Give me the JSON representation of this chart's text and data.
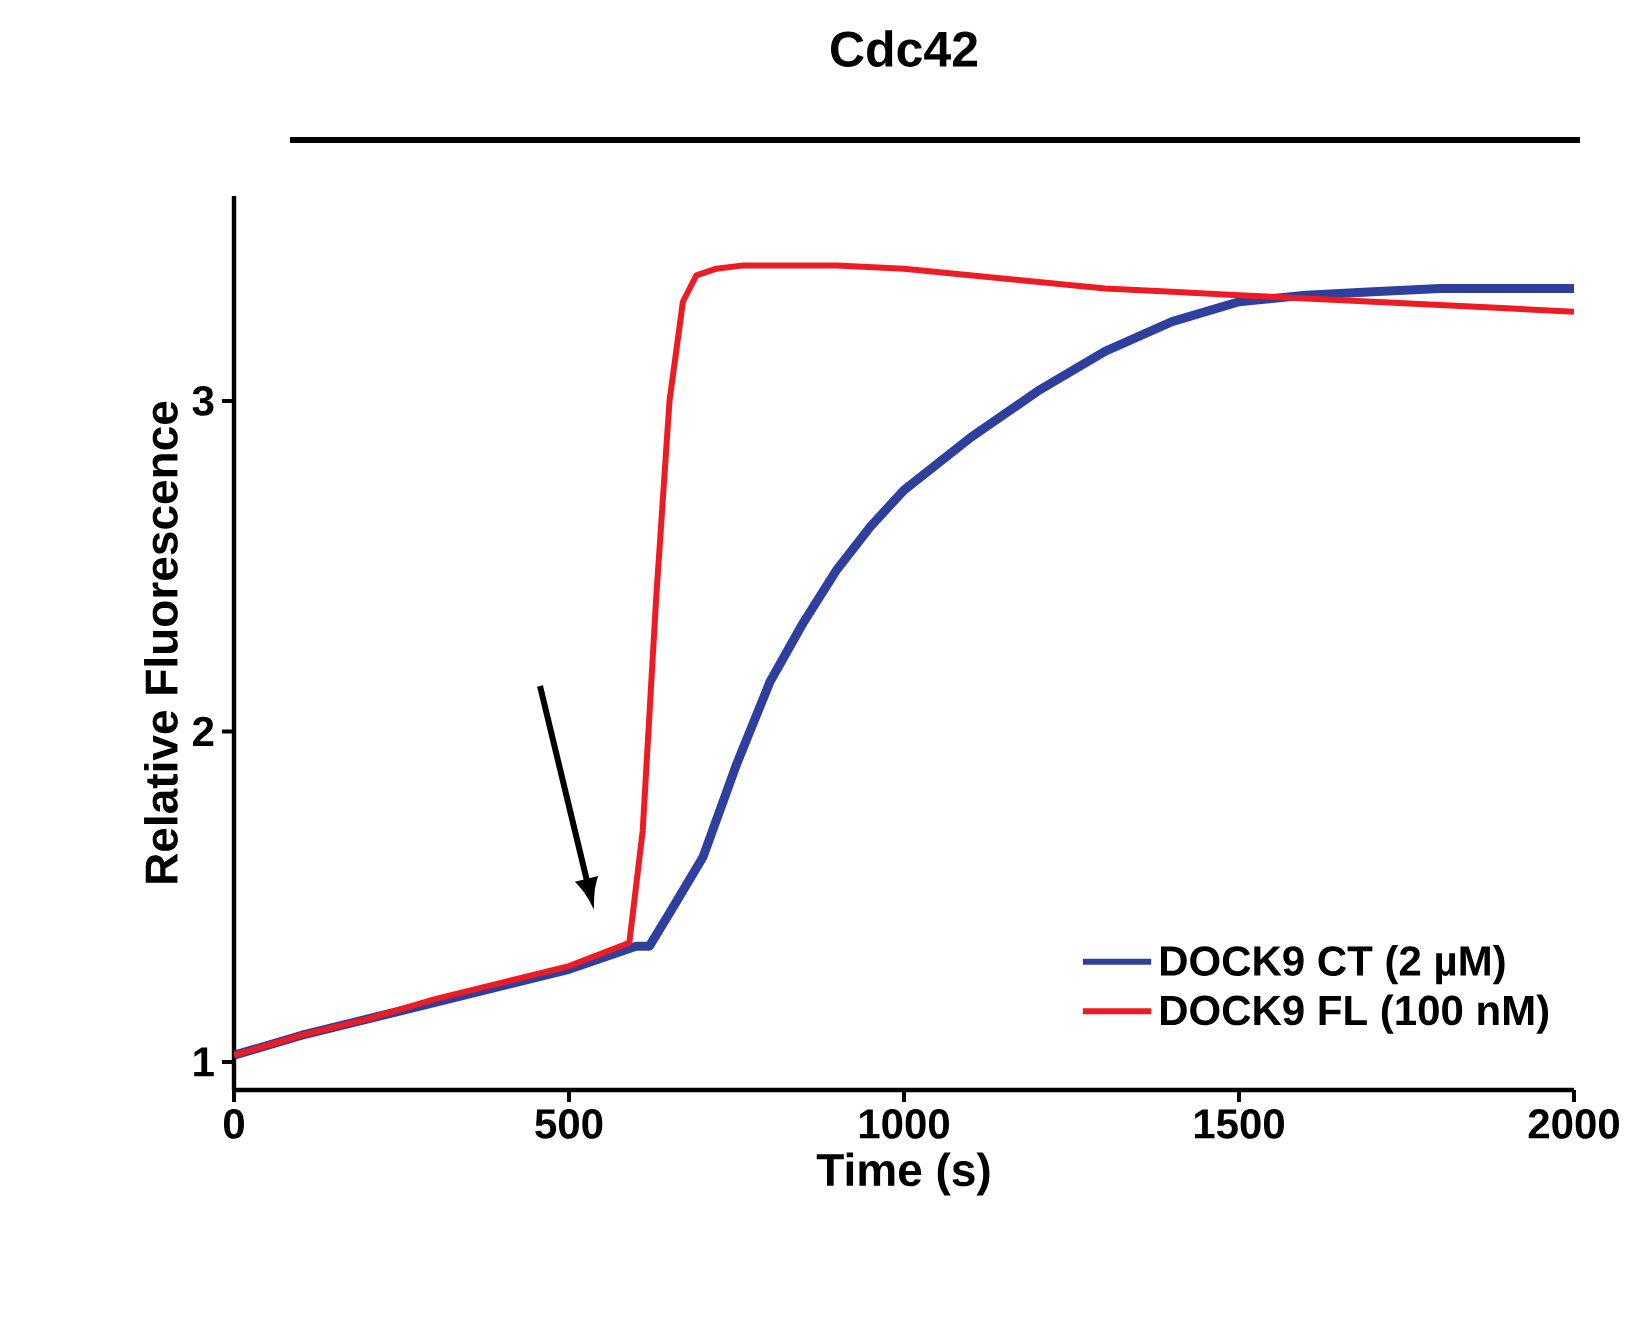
{
  "chart_data": {
    "type": "line",
    "title": "Cdc42",
    "xlabel": "Time (s)",
    "ylabel": "Relative Fluorescence",
    "xlim": [
      0,
      2000
    ],
    "xticks": [
      0,
      500,
      1000,
      1500,
      2000
    ],
    "ylim": [
      0.915,
      3.62
    ],
    "yticks": [
      1,
      2,
      3
    ],
    "grid": false,
    "legend": "bottom right",
    "marker": "none",
    "line_style": "solid",
    "series": [
      {
        "name": "DOCK9 CT (2 µM)",
        "color": "#2e3f9e",
        "x": [
          0,
          100,
          200,
          300,
          400,
          500,
          600,
          620,
          650,
          700,
          750,
          800,
          850,
          900,
          950,
          1000,
          1100,
          1200,
          1300,
          1400,
          1500,
          1600,
          1700,
          1800,
          1900,
          2000
        ],
        "values": [
          1.02,
          1.08,
          1.13,
          1.18,
          1.23,
          1.28,
          1.35,
          1.35,
          1.45,
          1.62,
          1.9,
          2.15,
          2.33,
          2.49,
          2.62,
          2.73,
          2.89,
          3.03,
          3.15,
          3.24,
          3.3,
          3.32,
          3.33,
          3.34,
          3.34,
          3.34
        ]
      },
      {
        "name": "DOCK9 FL (100 nM)",
        "color": "#ed1c24",
        "x": [
          0,
          100,
          200,
          300,
          400,
          500,
          590,
          610,
          630,
          650,
          670,
          690,
          720,
          760,
          800,
          900,
          1000,
          1100,
          1200,
          1300,
          1400,
          1500,
          1600,
          1700,
          1800,
          1900,
          2000
        ],
        "values": [
          1.02,
          1.08,
          1.13,
          1.19,
          1.24,
          1.29,
          1.36,
          1.7,
          2.4,
          3.0,
          3.3,
          3.38,
          3.4,
          3.41,
          3.41,
          3.41,
          3.4,
          3.38,
          3.36,
          3.34,
          3.33,
          3.32,
          3.31,
          3.3,
          3.29,
          3.28,
          3.27
        ]
      }
    ]
  }
}
